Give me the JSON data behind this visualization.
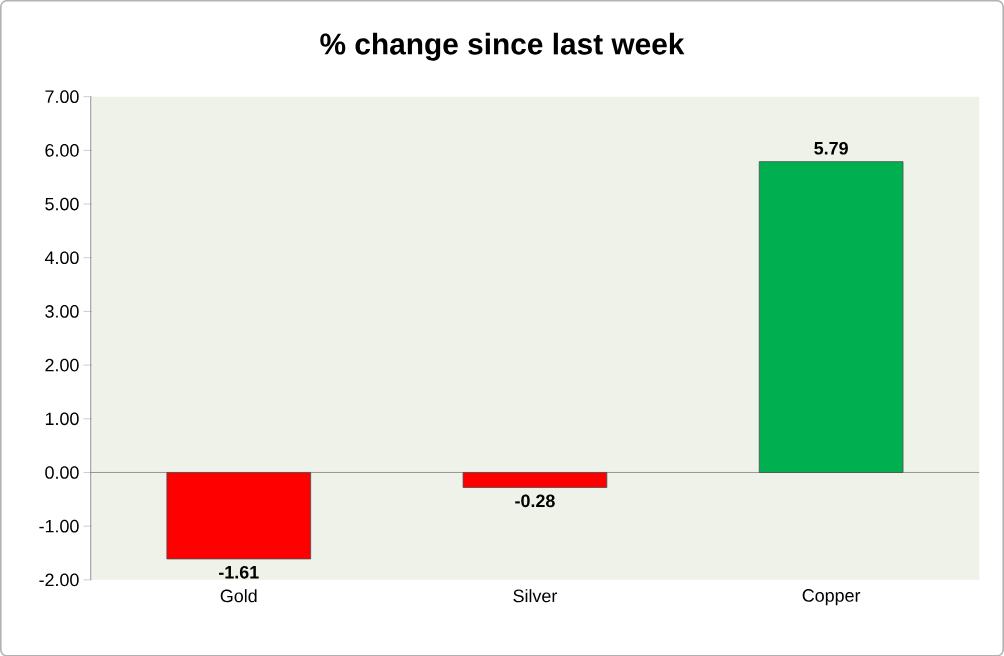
{
  "chart_data": {
    "type": "bar",
    "title": "% change since last week",
    "categories": [
      "Gold",
      "Silver",
      "Copper"
    ],
    "values": [
      -1.61,
      -0.28,
      5.79
    ],
    "colors": [
      "#ff0000",
      "#ff0000",
      "#00b050"
    ],
    "ylim": [
      -2,
      7
    ],
    "yticks": [
      {
        "value": -2,
        "label": "-2.00"
      },
      {
        "value": -1,
        "label": "-1.00"
      },
      {
        "value": 0,
        "label": "0.00"
      },
      {
        "value": 1,
        "label": "1.00"
      },
      {
        "value": 2,
        "label": "2.00"
      },
      {
        "value": 3,
        "label": "3.00"
      },
      {
        "value": 4,
        "label": "4.00"
      },
      {
        "value": 5,
        "label": "5.00"
      },
      {
        "value": 6,
        "label": "6.00"
      },
      {
        "value": 7,
        "label": "7.00"
      }
    ],
    "value_labels": [
      "-1.61",
      "-0.28",
      "5.79"
    ]
  }
}
